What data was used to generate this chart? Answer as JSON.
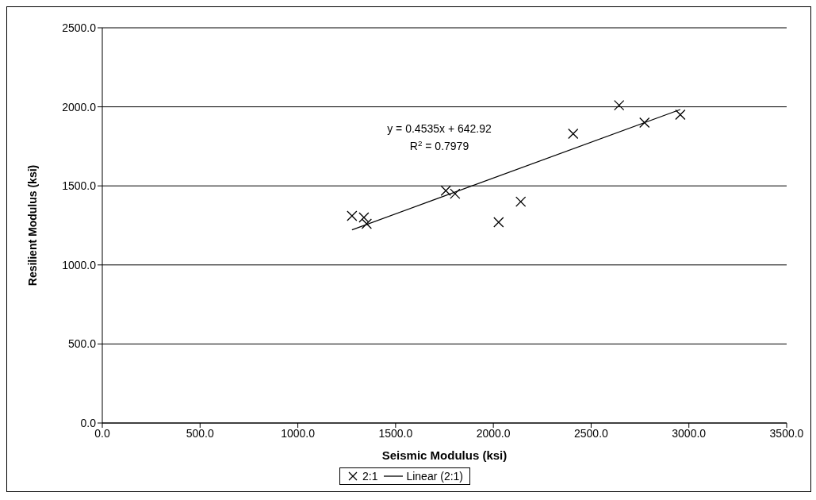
{
  "chart_data": {
    "type": "scatter",
    "xlabel": "Seismic Modulus (ksi)",
    "ylabel": "Resilient Modulus (ksi)",
    "x": [
      1277,
      1338,
      1352,
      1757,
      1804,
      2027,
      2140,
      2408,
      2643,
      2773,
      2956
    ],
    "series": [
      {
        "name": "2:1",
        "type": "scatter",
        "color": "#000000",
        "marker": "cross",
        "values": [
          1310,
          1300,
          1260,
          1470,
          1450,
          1270,
          1400,
          1830,
          2010,
          1900,
          1950
        ]
      },
      {
        "name": "Linear (2:1)",
        "type": "line",
        "color": "#000000",
        "x": [
          1277,
          2956
        ],
        "values": [
          1222,
          1983
        ]
      }
    ],
    "annotations": [
      "y = 0.4535x + 642.92",
      "R$^{2}$ = 0.7979"
    ],
    "xlim": [
      0,
      3500
    ],
    "ylim": [
      0,
      2500
    ],
    "xticks": [
      {
        "value": 0,
        "label": "0.0"
      },
      {
        "value": 500,
        "label": "500.0"
      },
      {
        "value": 1000,
        "label": "1000.0"
      },
      {
        "value": 1500,
        "label": "1500.0"
      },
      {
        "value": 2000,
        "label": "2000.0"
      },
      {
        "value": 2500,
        "label": "2500.0"
      },
      {
        "value": 3000,
        "label": "3000.0"
      },
      {
        "value": 3500,
        "label": "3500.0"
      }
    ],
    "yticks": [
      {
        "value": 0,
        "label": "0.0"
      },
      {
        "value": 500,
        "label": "500.0"
      },
      {
        "value": 1000,
        "label": "1000.0"
      },
      {
        "value": 1500,
        "label": "1500.0"
      },
      {
        "value": 2000,
        "label": "2000.0"
      },
      {
        "value": 2500,
        "label": "2500.0"
      }
    ],
    "grid": "y",
    "legend": "bottom"
  }
}
